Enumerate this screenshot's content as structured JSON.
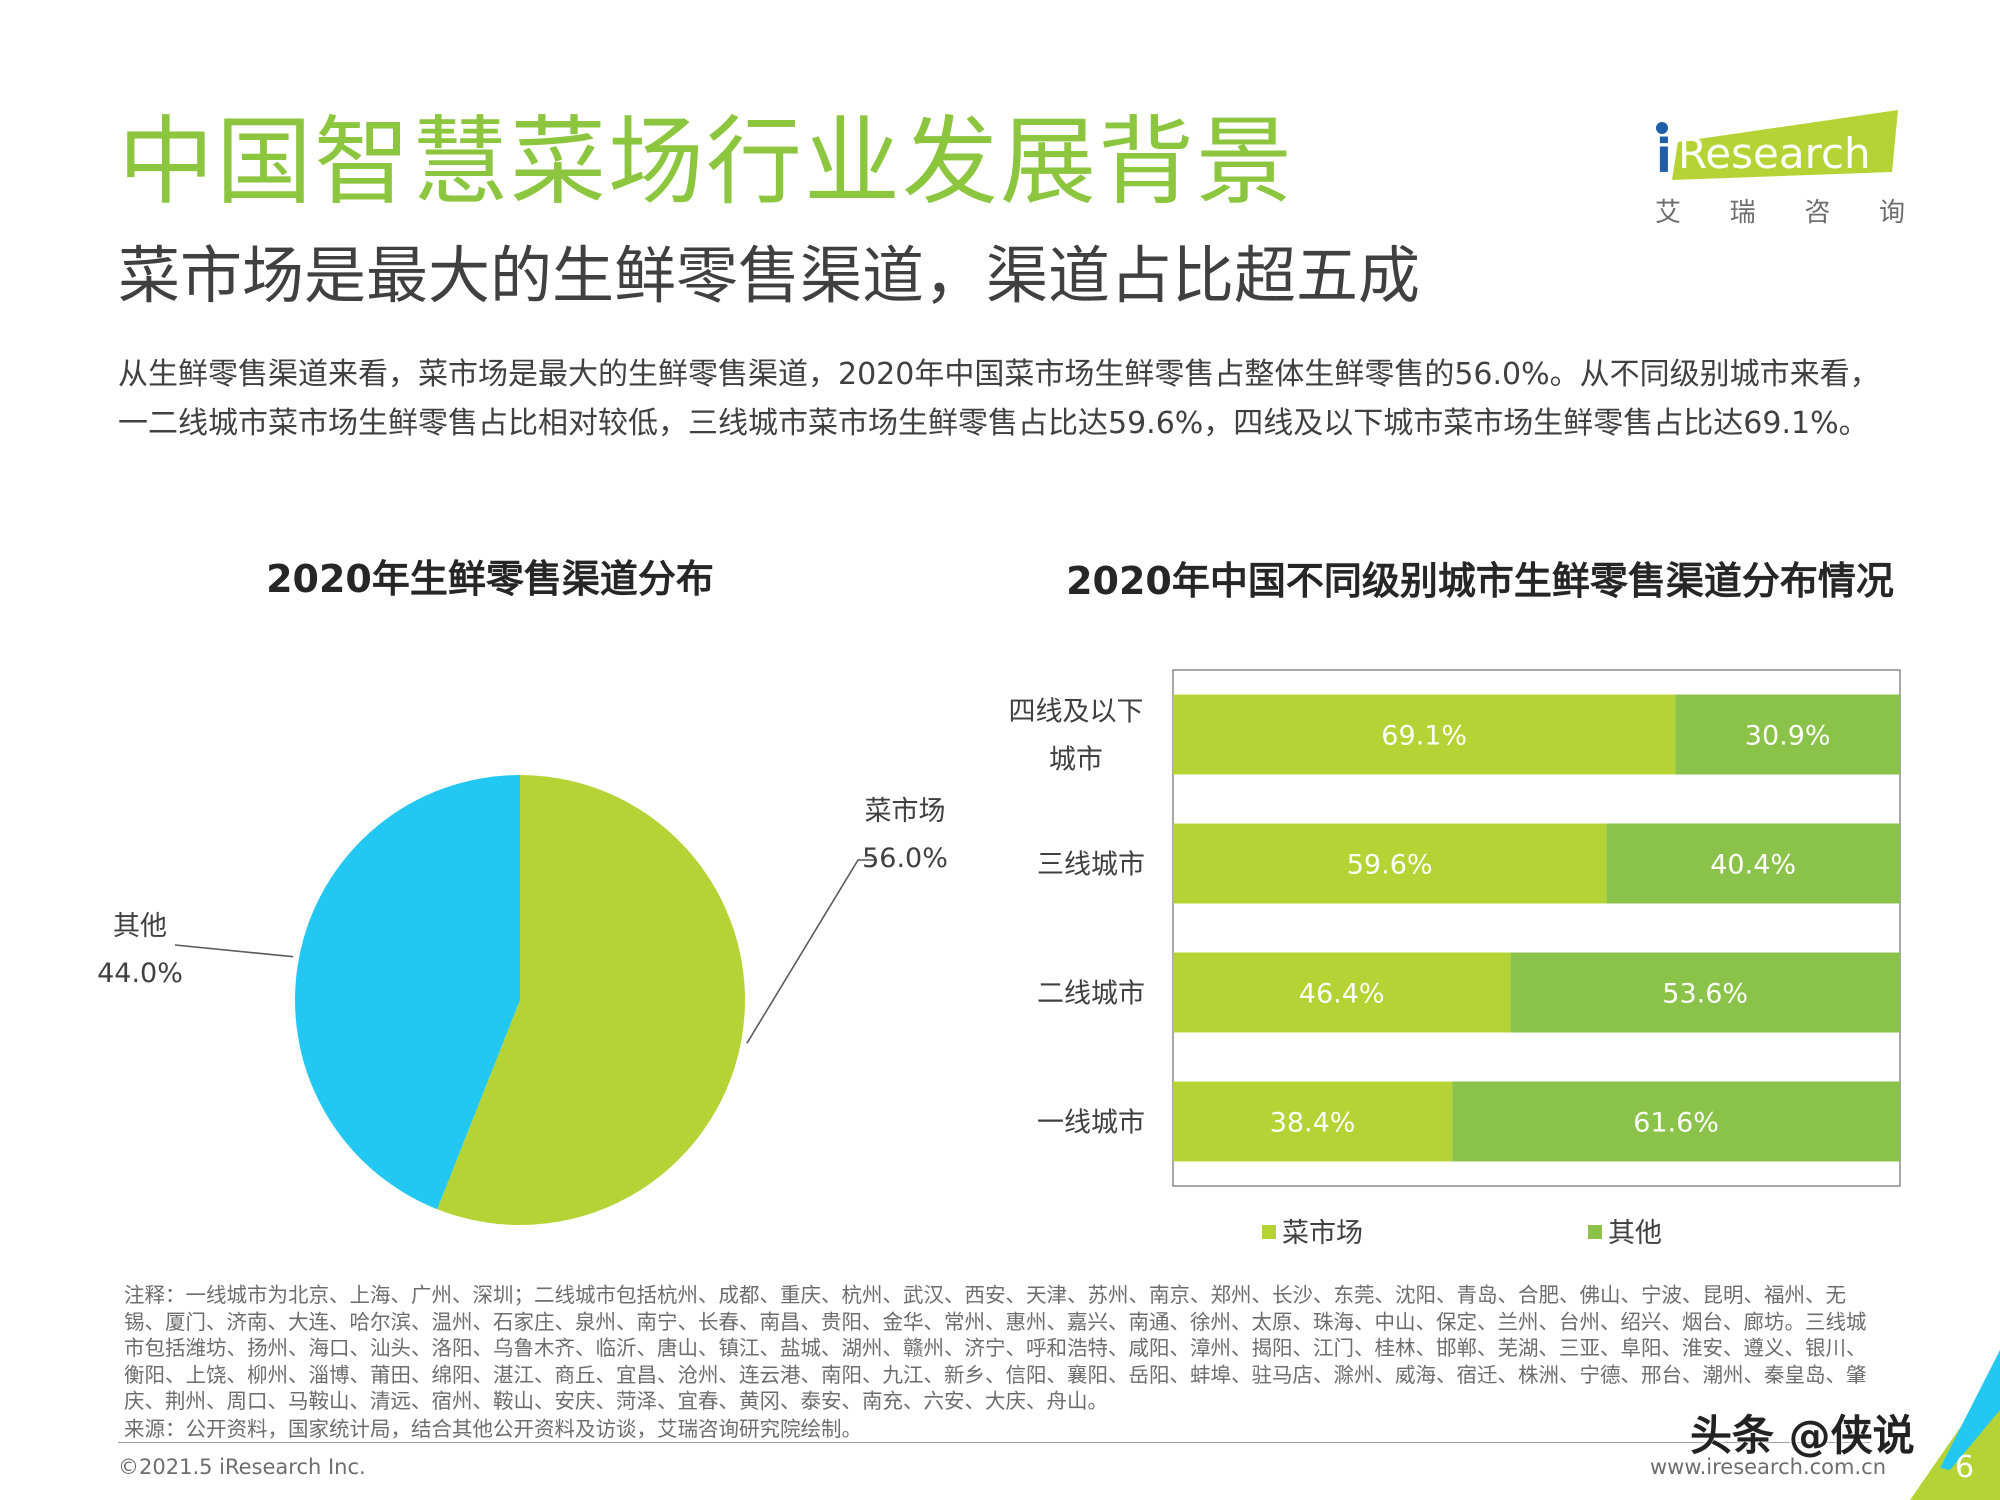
{
  "header": {
    "title": "中国智慧菜场行业发展背景",
    "subtitle": "菜市场是最大的生鲜零售渠道，渠道占比超五成",
    "summary": "从生鲜零售渠道来看，菜市场是最大的生鲜零售渠道，2020年中国菜市场生鲜零售占整体生鲜零售的56.0%。从不同级别城市来看，一二线城市菜市场生鲜零售占比相对较低，三线城市菜市场生鲜零售占比达59.6%，四线及以下城市菜市场生鲜零售占比达69.1%。"
  },
  "logo": {
    "i": "i",
    "name": "Research",
    "cn": [
      "艾",
      "瑞",
      "咨",
      "询"
    ]
  },
  "colors": {
    "market": "#b5d334",
    "other_bar": "#8bc34a",
    "other_pie": "#22c8f2",
    "title_green": "#8cc63f"
  },
  "chart_data": [
    {
      "type": "pie",
      "title": "2020年生鲜零售渠道分布",
      "slices": [
        {
          "label": "菜市场",
          "value": 56.0,
          "value_label": "56.0%"
        },
        {
          "label": "其他",
          "value": 44.0,
          "value_label": "44.0%"
        }
      ]
    },
    {
      "type": "bar",
      "orientation": "horizontal",
      "stacked": true,
      "title": "2020年中国不同级别城市生鲜零售渠道分布情况",
      "categories": [
        "四线及以下城市",
        "三线城市",
        "二线城市",
        "一线城市"
      ],
      "category_lines": [
        [
          "四线及以下",
          "城市"
        ],
        [
          "三线城市"
        ],
        [
          "二线城市"
        ],
        [
          "一线城市"
        ]
      ],
      "series": [
        {
          "name": "菜市场",
          "values": [
            69.1,
            59.6,
            46.4,
            38.4
          ],
          "labels": [
            "69.1%",
            "59.6%",
            "46.4%",
            "38.4%"
          ]
        },
        {
          "name": "其他",
          "values": [
            30.9,
            40.4,
            53.6,
            61.6
          ],
          "labels": [
            "30.9%",
            "40.4%",
            "53.6%",
            "61.6%"
          ]
        }
      ],
      "xlim": [
        0,
        100
      ],
      "legend": "bottom"
    }
  ],
  "footer": {
    "notes": "注释：一线城市为北京、上海、广州、深圳；二线城市包括杭州、成都、重庆、杭州、武汉、西安、天津、苏州、南京、郑州、长沙、东莞、沈阳、青岛、合肥、佛山、宁波、昆明、福州、无锡、厦门、济南、大连、哈尔滨、温州、石家庄、泉州、南宁、长春、南昌、贵阳、金华、常州、惠州、嘉兴、南通、徐州、太原、珠海、中山、保定、兰州、台州、绍兴、烟台、廊坊。三线城市包括潍坊、扬州、海口、汕头、洛阳、乌鲁木齐、临沂、唐山、镇江、盐城、湖州、赣州、济宁、呼和浩特、咸阳、漳州、揭阳、江门、桂林、邯郸、芜湖、三亚、阜阳、淮安、遵义、银川、衡阳、上饶、柳州、淄博、莆田、绵阳、湛江、商丘、宜昌、沧州、连云港、南阳、九江、新乡、信阳、襄阳、岳阳、蚌埠、驻马店、滁州、威海、宿迁、株洲、宁德、邢台、潮州、秦皇岛、肇庆、荆州、周口、马鞍山、清远、宿州、鞍山、安庆、菏泽、宜春、黄冈、泰安、南充、六安、大庆、舟山。",
    "source": "来源：公开资料，国家统计局，结合其他公开资料及访谈，艾瑞咨询研究院绘制。",
    "copyright": "©2021.5 iResearch Inc.",
    "website": "www.iresearch.com.cn",
    "page": "6",
    "watermark": "头条 @侠说"
  }
}
